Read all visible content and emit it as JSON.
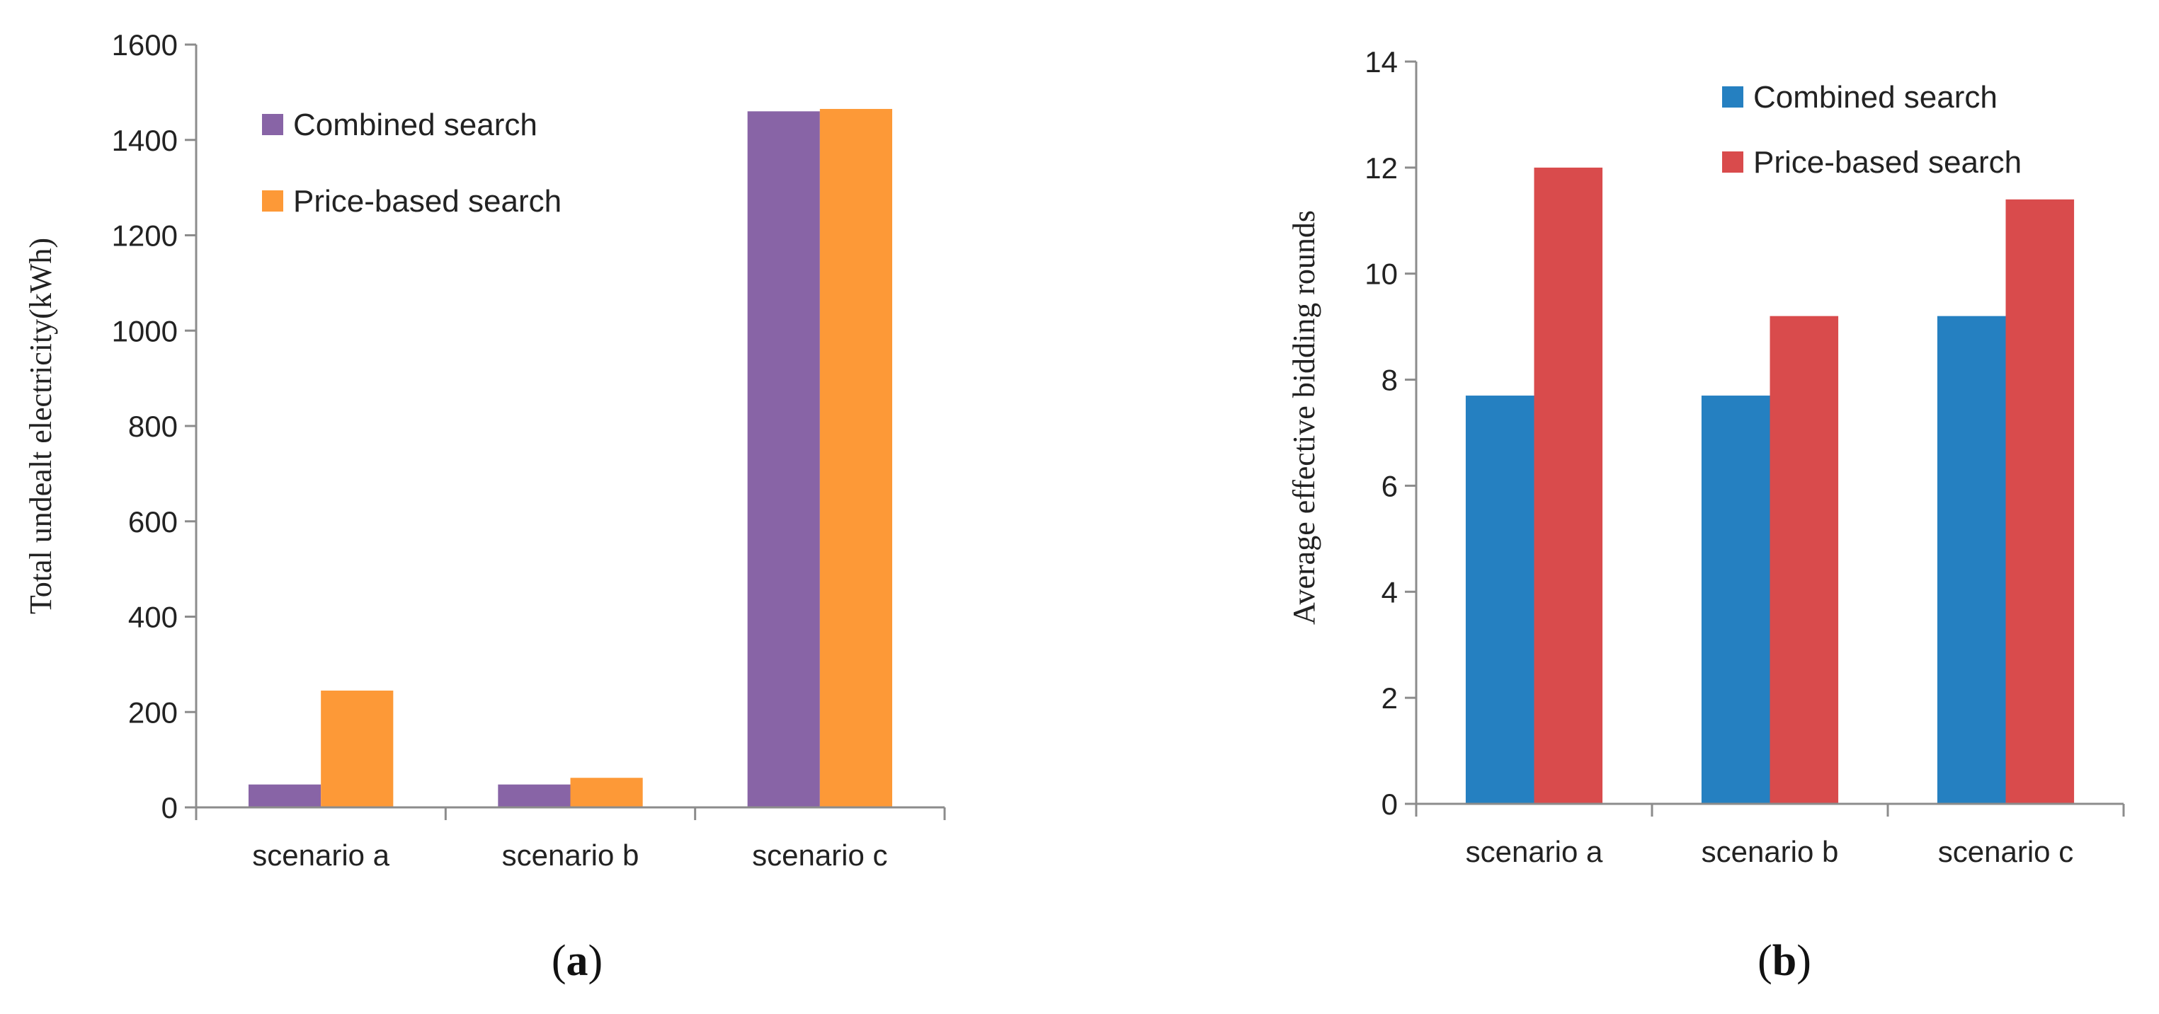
{
  "colors": {
    "axis": "#8c8c8c"
  },
  "chart_data": [
    {
      "type": "bar",
      "panel_label": "a",
      "categories": [
        "scenario a",
        "scenario b",
        "scenario c"
      ],
      "series": [
        {
          "name": "Combined search",
          "color": "#8864a6",
          "values": [
            48,
            48,
            1460
          ]
        },
        {
          "name": "Price-based search",
          "color": "#fd9937",
          "values": [
            245,
            62,
            1465
          ]
        }
      ],
      "ylabel": "Total undealt electricity(kWh)",
      "ylim": [
        0,
        1600
      ],
      "yticks": [
        "0",
        "200",
        "400",
        "600",
        "800",
        "1000",
        "1200",
        "1400",
        "1600"
      ],
      "grid": false,
      "legend_position": "top-left"
    },
    {
      "type": "bar",
      "panel_label": "b",
      "categories": [
        "scenario a",
        "scenario b",
        "scenario c"
      ],
      "series": [
        {
          "name": "Combined search",
          "color": "#2580c1",
          "values": [
            7.7,
            7.7,
            9.2
          ]
        },
        {
          "name": "Price-based search",
          "color": "#d94b4c",
          "values": [
            12,
            9.2,
            11.4
          ]
        }
      ],
      "ylabel": "Average effective bidding rounds",
      "ylim": [
        0,
        14
      ],
      "yticks": [
        "0",
        "2",
        "4",
        "6",
        "8",
        "10",
        "12",
        "14"
      ],
      "grid": false,
      "legend_position": "top-right"
    }
  ]
}
